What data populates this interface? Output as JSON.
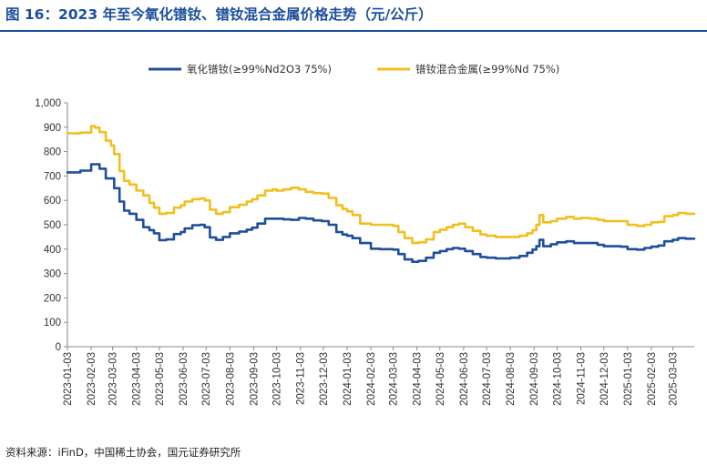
{
  "header": {
    "title": "图 16：2023 年至今氧化镨钕、镨钕混合金属价格走势（元/公斤）"
  },
  "footer": {
    "source": "资料来源：iFinD，中国稀土协会，国元证券研究所"
  },
  "colors": {
    "title": "#1b4f9c",
    "series_oxide": "#1f4e9a",
    "series_metal": "#f2bf1d",
    "axis": "#8a8a8a"
  },
  "chart_data": {
    "type": "line",
    "title": "",
    "xlabel": "",
    "ylabel": "",
    "ylim": [
      0,
      1000
    ],
    "yticks": [
      "0",
      "100",
      "200",
      "300",
      "400",
      "500",
      "600",
      "700",
      "800",
      "900",
      "1,000"
    ],
    "xlim": [
      "2023-01-03",
      "2025-03-31"
    ],
    "xticks": [
      "2023-01-03",
      "2023-02-03",
      "2023-03-03",
      "2023-04-03",
      "2023-05-03",
      "2023-06-03",
      "2023-07-03",
      "2023-08-03",
      "2023-09-03",
      "2023-10-03",
      "2023-11-03",
      "2023-12-03",
      "2024-01-03",
      "2024-02-03",
      "2024-03-03",
      "2024-04-03",
      "2024-05-03",
      "2024-06-03",
      "2024-07-03",
      "2024-08-03",
      "2024-09-03",
      "2024-10-03",
      "2024-11-03",
      "2024-12-03",
      "2025-01-03",
      "2025-02-03",
      "2025-03-03"
    ],
    "grid": false,
    "legend": "top",
    "series": [
      {
        "name": "氧化镨钕(≥99%Nd2O3 75%)",
        "color": "#1f4e9a",
        "x": [
          "2023-01-03",
          "2023-01-20",
          "2023-01-28",
          "2023-02-03",
          "2023-02-08",
          "2023-02-14",
          "2023-02-22",
          "2023-03-01",
          "2023-03-05",
          "2023-03-12",
          "2023-03-18",
          "2023-03-25",
          "2023-04-03",
          "2023-04-12",
          "2023-04-20",
          "2023-04-26",
          "2023-05-03",
          "2023-05-12",
          "2023-05-22",
          "2023-05-31",
          "2023-06-05",
          "2023-06-15",
          "2023-06-25",
          "2023-07-01",
          "2023-07-08",
          "2023-07-16",
          "2023-07-25",
          "2023-08-03",
          "2023-08-15",
          "2023-08-25",
          "2023-09-01",
          "2023-09-08",
          "2023-09-18",
          "2023-09-28",
          "2023-10-03",
          "2023-10-12",
          "2023-10-22",
          "2023-11-01",
          "2023-11-10",
          "2023-11-20",
          "2023-12-01",
          "2023-12-10",
          "2023-12-20",
          "2023-12-28",
          "2024-01-03",
          "2024-01-10",
          "2024-01-20",
          "2024-02-03",
          "2024-02-15",
          "2024-02-25",
          "2024-03-03",
          "2024-03-10",
          "2024-03-18",
          "2024-03-28",
          "2024-04-05",
          "2024-04-15",
          "2024-04-25",
          "2024-05-03",
          "2024-05-12",
          "2024-05-20",
          "2024-05-28",
          "2024-06-05",
          "2024-06-15",
          "2024-06-25",
          "2024-07-03",
          "2024-07-15",
          "2024-07-25",
          "2024-08-03",
          "2024-08-15",
          "2024-08-25",
          "2024-09-01",
          "2024-09-06",
          "2024-09-10",
          "2024-09-15",
          "2024-09-25",
          "2024-10-03",
          "2024-10-15",
          "2024-10-25",
          "2024-11-03",
          "2024-11-15",
          "2024-11-25",
          "2024-12-03",
          "2024-12-15",
          "2024-12-25",
          "2025-01-03",
          "2025-01-15",
          "2025-01-25",
          "2025-02-03",
          "2025-02-12",
          "2025-02-20",
          "2025-03-03",
          "2025-03-10",
          "2025-03-20",
          "2025-03-31"
        ],
        "values": [
          715,
          722,
          722,
          748,
          748,
          730,
          690,
          690,
          650,
          595,
          558,
          545,
          520,
          490,
          478,
          465,
          437,
          440,
          462,
          470,
          485,
          498,
          500,
          490,
          448,
          438,
          450,
          465,
          472,
          480,
          488,
          505,
          525,
          525,
          525,
          522,
          520,
          528,
          525,
          518,
          515,
          500,
          470,
          460,
          455,
          445,
          425,
          402,
          400,
          400,
          398,
          380,
          358,
          348,
          352,
          365,
          385,
          392,
          400,
          405,
          402,
          392,
          380,
          368,
          365,
          362,
          362,
          365,
          372,
          385,
          398,
          412,
          438,
          412,
          420,
          428,
          432,
          425,
          425,
          425,
          418,
          412,
          412,
          410,
          400,
          398,
          405,
          410,
          415,
          432,
          438,
          445,
          443,
          443
        ]
      },
      {
        "name": "镨钕混合金属(≥99%Nd 75%)",
        "color": "#f2bf1d",
        "x": [
          "2023-01-03",
          "2023-01-20",
          "2023-01-28",
          "2023-02-03",
          "2023-02-08",
          "2023-02-14",
          "2023-02-22",
          "2023-03-01",
          "2023-03-05",
          "2023-03-12",
          "2023-03-18",
          "2023-03-25",
          "2023-04-03",
          "2023-04-12",
          "2023-04-20",
          "2023-04-26",
          "2023-05-03",
          "2023-05-12",
          "2023-05-22",
          "2023-05-31",
          "2023-06-05",
          "2023-06-15",
          "2023-06-25",
          "2023-07-01",
          "2023-07-08",
          "2023-07-16",
          "2023-07-25",
          "2023-08-03",
          "2023-08-15",
          "2023-08-25",
          "2023-09-01",
          "2023-09-08",
          "2023-09-18",
          "2023-09-28",
          "2023-10-03",
          "2023-10-12",
          "2023-10-22",
          "2023-11-01",
          "2023-11-10",
          "2023-11-20",
          "2023-12-01",
          "2023-12-10",
          "2023-12-20",
          "2023-12-28",
          "2024-01-03",
          "2024-01-10",
          "2024-01-20",
          "2024-02-03",
          "2024-02-15",
          "2024-02-25",
          "2024-03-03",
          "2024-03-10",
          "2024-03-18",
          "2024-03-28",
          "2024-04-05",
          "2024-04-15",
          "2024-04-25",
          "2024-05-03",
          "2024-05-12",
          "2024-05-20",
          "2024-05-28",
          "2024-06-05",
          "2024-06-15",
          "2024-06-25",
          "2024-07-03",
          "2024-07-15",
          "2024-07-25",
          "2024-08-03",
          "2024-08-15",
          "2024-08-25",
          "2024-09-01",
          "2024-09-06",
          "2024-09-10",
          "2024-09-15",
          "2024-09-25",
          "2024-10-03",
          "2024-10-15",
          "2024-10-25",
          "2024-11-03",
          "2024-11-15",
          "2024-11-25",
          "2024-12-03",
          "2024-12-15",
          "2024-12-25",
          "2025-01-03",
          "2025-01-15",
          "2025-01-25",
          "2025-02-03",
          "2025-02-12",
          "2025-02-20",
          "2025-03-03",
          "2025-03-10",
          "2025-03-20",
          "2025-03-31"
        ],
        "values": [
          875,
          878,
          878,
          905,
          898,
          880,
          845,
          825,
          790,
          720,
          680,
          665,
          640,
          620,
          590,
          570,
          545,
          548,
          570,
          580,
          595,
          605,
          608,
          600,
          562,
          545,
          552,
          572,
          582,
          595,
          605,
          620,
          640,
          645,
          640,
          645,
          652,
          645,
          635,
          630,
          628,
          610,
          580,
          565,
          555,
          540,
          505,
          500,
          500,
          500,
          495,
          470,
          445,
          425,
          428,
          440,
          470,
          480,
          490,
          500,
          505,
          490,
          475,
          460,
          455,
          450,
          450,
          450,
          455,
          465,
          478,
          500,
          540,
          510,
          515,
          525,
          532,
          525,
          528,
          525,
          520,
          515,
          515,
          515,
          500,
          495,
          500,
          510,
          512,
          535,
          540,
          548,
          545,
          545
        ]
      }
    ]
  }
}
